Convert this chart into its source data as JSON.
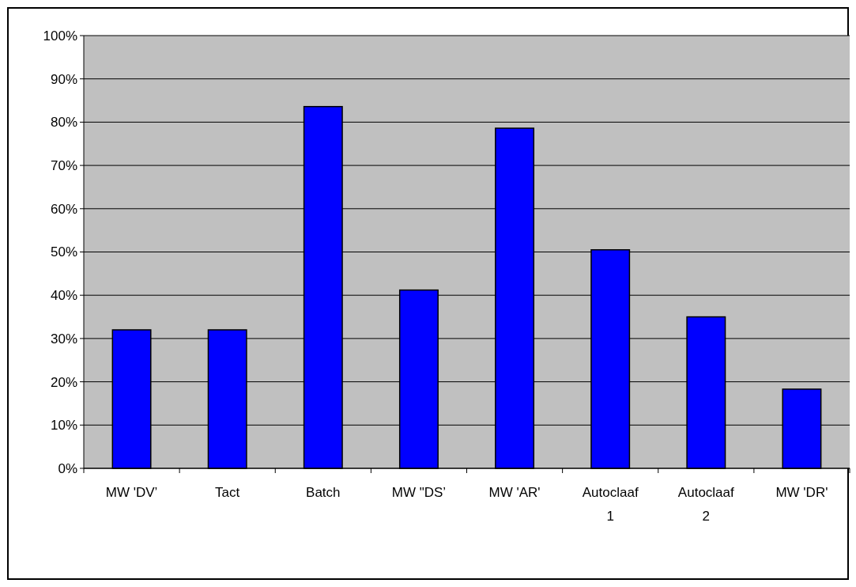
{
  "chart_data": {
    "type": "bar",
    "categories": [
      "MW 'DV’",
      "Tact",
      "Batch",
      "MW \"DS’",
      "MW 'AR'",
      "Autoclaaf 1",
      "Autoclaaf 2",
      "MW 'DR'"
    ],
    "values": [
      32,
      32,
      83.6,
      41.2,
      78.6,
      50.5,
      35,
      18.3
    ],
    "color": "#0000ff",
    "ylim": [
      0,
      100
    ],
    "yticks": [
      {
        "value": 0,
        "label": "0%"
      },
      {
        "value": 10,
        "label": "10%"
      },
      {
        "value": 20,
        "label": "20%"
      },
      {
        "value": 30,
        "label": "30%"
      },
      {
        "value": 40,
        "label": "40%"
      },
      {
        "value": 50,
        "label": "50%"
      },
      {
        "value": 60,
        "label": "60%"
      },
      {
        "value": 70,
        "label": "70%"
      },
      {
        "value": 80,
        "label": "80%"
      },
      {
        "value": 90,
        "label": "90%"
      },
      {
        "value": 100,
        "label": "100%"
      }
    ],
    "grid": "y"
  }
}
